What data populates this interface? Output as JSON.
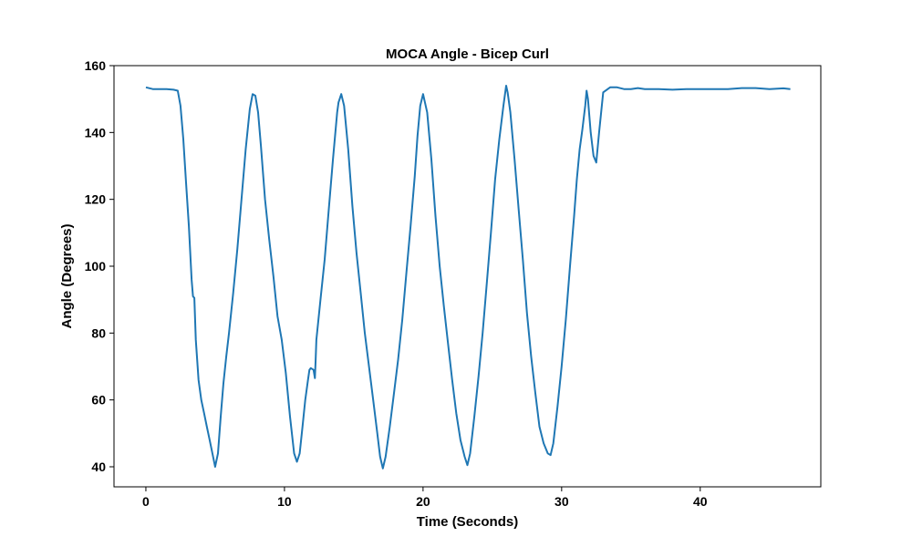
{
  "chart_data": {
    "type": "line",
    "title": "MOCA Angle - Bicep Curl",
    "xlabel": "Time (Seconds)",
    "ylabel": "Angle (Degrees)",
    "xlim": [
      -2.3,
      48.7
    ],
    "ylim": [
      34,
      160
    ],
    "xticks": [
      0,
      10,
      20,
      30,
      40
    ],
    "yticks": [
      40,
      60,
      80,
      100,
      120,
      140,
      160
    ],
    "grid": false,
    "legend": "none",
    "series_color": "#1f77b4",
    "series": [
      {
        "x": [
          0,
          0.5,
          1.0,
          1.5,
          2.0,
          2.3,
          2.5,
          2.7,
          2.9,
          3.1,
          3.2,
          3.3,
          3.4,
          3.5,
          3.6,
          3.7,
          3.8,
          4.0,
          4.2,
          4.4,
          4.6,
          4.8,
          5.0,
          5.2,
          5.4,
          5.6,
          5.8,
          6.0,
          6.3,
          6.6,
          6.9,
          7.2,
          7.5,
          7.7,
          7.9,
          8.1,
          8.3,
          8.6,
          8.9,
          9.2,
          9.5,
          9.8,
          10.1,
          10.4,
          10.7,
          10.9,
          11.1,
          11.3,
          11.5,
          11.7,
          11.8,
          11.9,
          12.1,
          12.2,
          12.25,
          12.3,
          12.6,
          12.9,
          13.2,
          13.5,
          13.8,
          13.9,
          14.1,
          14.3,
          14.6,
          14.9,
          15.2,
          15.5,
          15.8,
          16.1,
          16.4,
          16.7,
          16.9,
          17.1,
          17.3,
          17.6,
          17.9,
          18.2,
          18.5,
          18.8,
          19.1,
          19.4,
          19.6,
          19.8,
          20.0,
          20.3,
          20.6,
          20.9,
          21.2,
          21.5,
          21.8,
          22.1,
          22.4,
          22.7,
          23.0,
          23.2,
          23.4,
          23.7,
          24.0,
          24.3,
          24.6,
          24.9,
          25.2,
          25.5,
          25.8,
          26.0,
          26.1,
          26.3,
          26.6,
          26.9,
          27.2,
          27.5,
          27.8,
          28.1,
          28.4,
          28.7,
          29.0,
          29.2,
          29.4,
          29.7,
          30.0,
          30.3,
          30.6,
          30.9,
          31.1,
          31.3,
          31.5,
          31.7,
          31.8,
          31.9,
          32.1,
          32.3,
          32.5,
          32.7,
          33.0,
          33.5,
          34.0,
          34.5,
          35.0,
          35.5,
          36.0,
          37.0,
          38.0,
          39.0,
          40.0,
          41.0,
          42.0,
          43.0,
          44.0,
          45.0,
          46.0,
          46.5
        ],
        "y": [
          153.5,
          153.0,
          153.0,
          153.0,
          152.8,
          152.5,
          148.0,
          138.0,
          125.0,
          112.0,
          104.0,
          96.0,
          91.0,
          90.5,
          78.0,
          72.0,
          66.0,
          60.0,
          56.0,
          52.0,
          48.0,
          44.0,
          40.0,
          44.0,
          55.0,
          65.0,
          73.0,
          80.0,
          92.0,
          105.0,
          120.0,
          135.0,
          147.0,
          151.5,
          151.0,
          146.0,
          136.0,
          120.0,
          108.0,
          97.0,
          85.0,
          78.0,
          68.0,
          55.0,
          44.0,
          41.5,
          44.0,
          52.0,
          60.0,
          66.0,
          69.0,
          69.5,
          69.0,
          66.5,
          72.0,
          78.0,
          90.0,
          102.0,
          117.0,
          132.0,
          146.0,
          149.0,
          151.5,
          148.0,
          135.0,
          118.0,
          104.0,
          92.0,
          80.0,
          70.0,
          60.0,
          50.0,
          43.0,
          39.5,
          43.0,
          52.0,
          62.0,
          72.0,
          84.0,
          98.0,
          112.0,
          127.0,
          139.0,
          148.0,
          151.5,
          146.0,
          132.0,
          115.0,
          100.0,
          88.0,
          77.0,
          66.0,
          56.0,
          48.0,
          43.0,
          40.5,
          44.0,
          55.0,
          67.0,
          80.0,
          95.0,
          110.0,
          126.0,
          138.0,
          148.0,
          154.0,
          152.0,
          146.0,
          132.0,
          117.0,
          102.0,
          86.0,
          73.0,
          62.0,
          52.0,
          47.0,
          44.0,
          43.5,
          47.0,
          58.0,
          70.0,
          84.0,
          100.0,
          115.0,
          126.0,
          135.0,
          141.0,
          148.0,
          152.5,
          150.0,
          140.0,
          133.0,
          131.0,
          140.0,
          152.0,
          153.5,
          153.5,
          153.0,
          153.0,
          153.3,
          153.0,
          153.0,
          152.8,
          153.0,
          153.0,
          153.0,
          153.0,
          153.3,
          153.3,
          153.0,
          153.2,
          153.0
        ]
      }
    ]
  }
}
